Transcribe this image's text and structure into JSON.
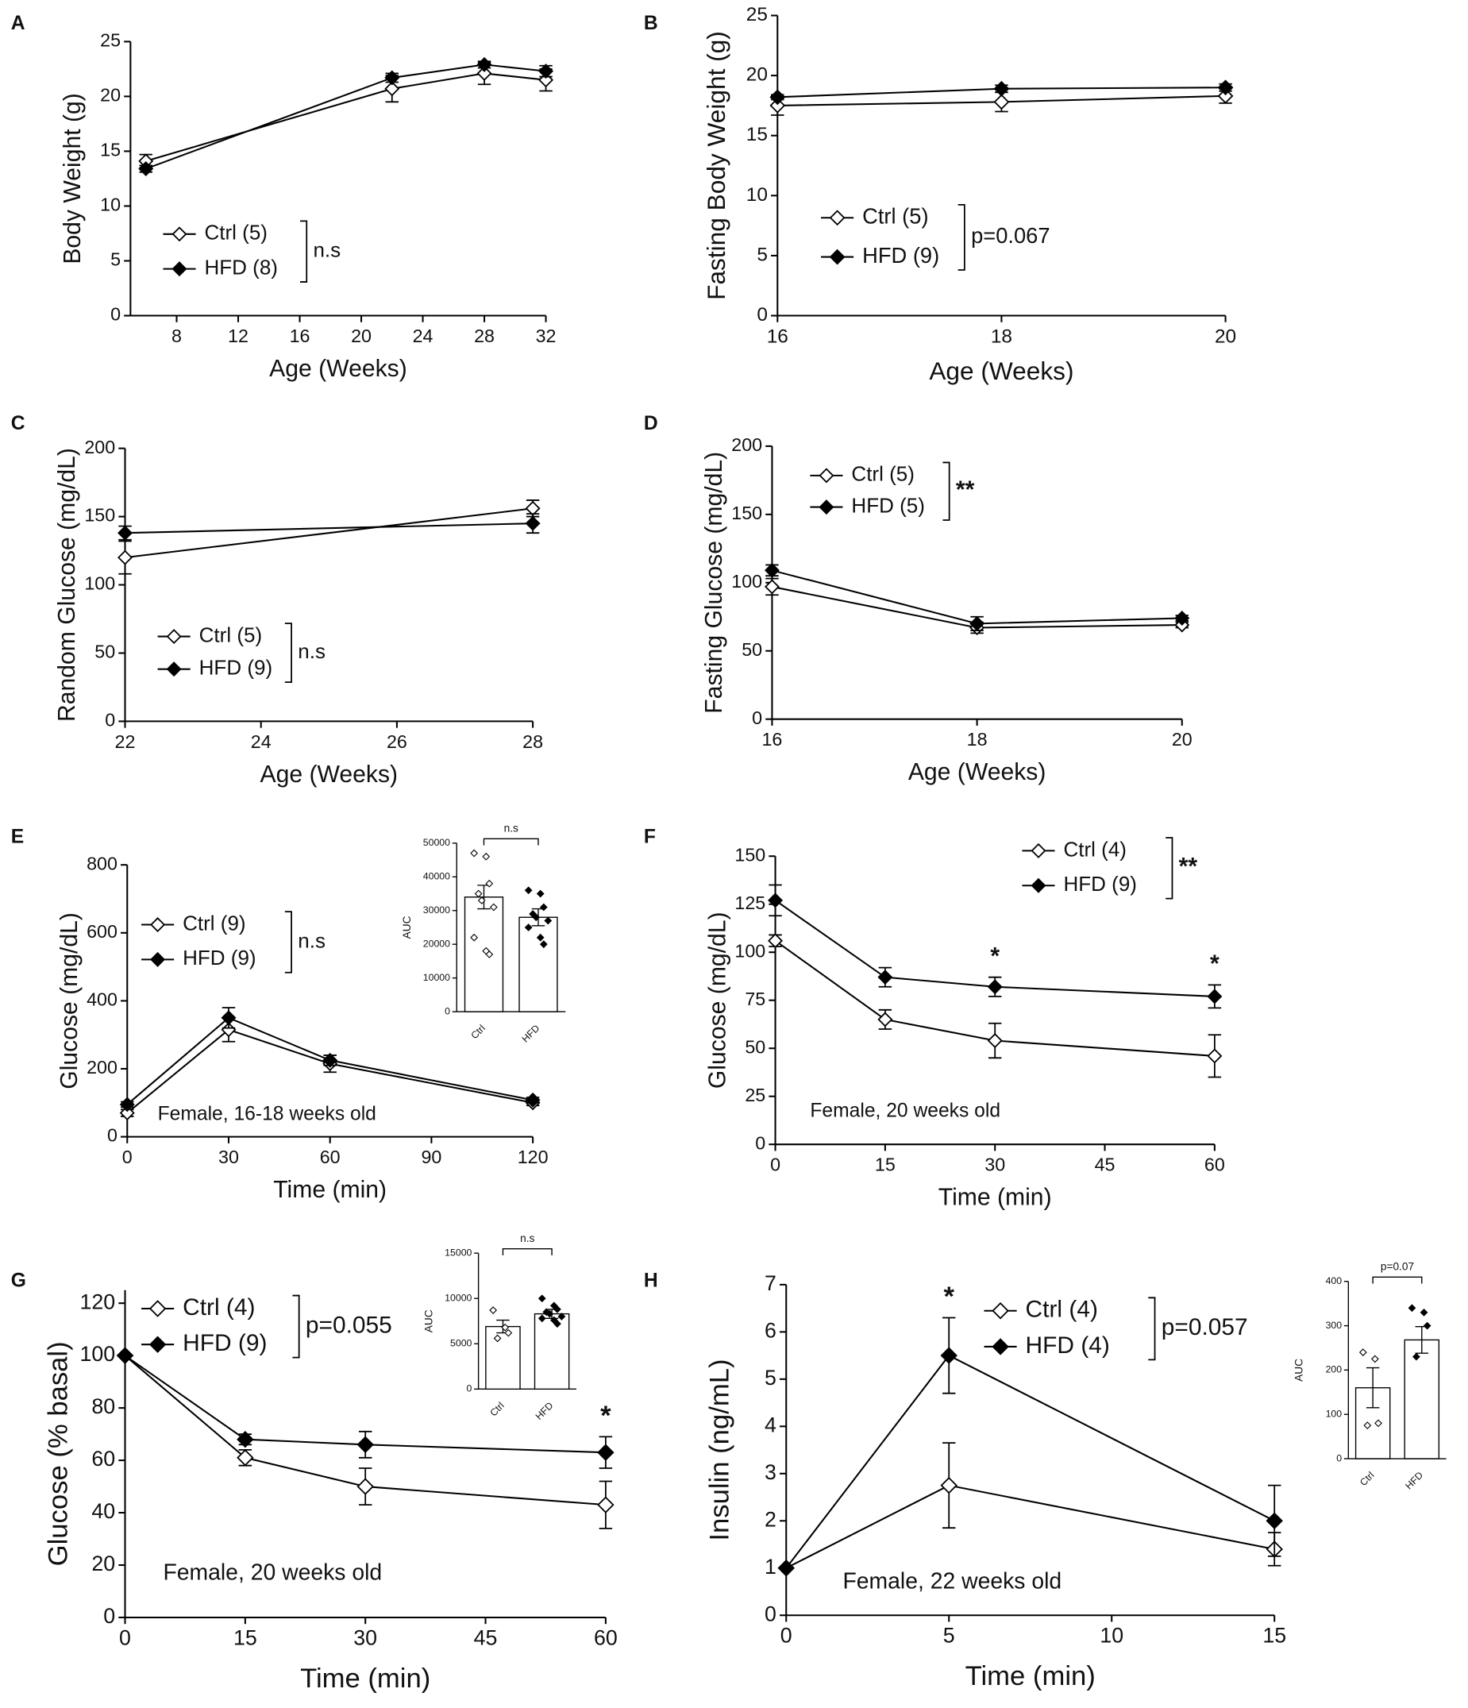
{
  "chart_data": [
    {
      "type": "line",
      "panel": "A",
      "xlabel": "Age (Weeks)",
      "ylabel": "Body Weight (g)",
      "x": [
        6,
        22,
        28,
        32
      ],
      "xlim": [
        5,
        32
      ],
      "xticks": [
        8,
        12,
        16,
        20,
        24,
        28,
        32
      ],
      "ylim": [
        0,
        25
      ],
      "yticks": [
        0,
        5,
        10,
        15,
        20,
        25
      ],
      "series": [
        {
          "name": "Ctrl (5)",
          "marker": "open",
          "color": "#000",
          "values": [
            14.1,
            20.7,
            22.1,
            21.5
          ],
          "errors": [
            0.6,
            1.2,
            1.0,
            1.0
          ]
        },
        {
          "name": "HFD (8)",
          "marker": "filled",
          "color": "#000",
          "values": [
            13.4,
            21.7,
            22.9,
            22.3
          ],
          "errors": [
            0.3,
            0.4,
            0.3,
            0.5
          ]
        }
      ],
      "legend_note": "n.s"
    },
    {
      "type": "line",
      "panel": "B",
      "xlabel": "Age (Weeks)",
      "ylabel": "Fasting Body Weight (g)",
      "x": [
        16,
        18,
        20
      ],
      "xlim": [
        16,
        20
      ],
      "xticks": [
        16,
        18,
        20
      ],
      "ylim": [
        0,
        25
      ],
      "yticks": [
        0,
        5,
        10,
        15,
        20,
        25
      ],
      "series": [
        {
          "name": "Ctrl (5)",
          "marker": "open",
          "color": "#000",
          "values": [
            17.5,
            17.8,
            18.3
          ],
          "errors": [
            0.8,
            0.8,
            0.6
          ]
        },
        {
          "name": "HFD (9)",
          "marker": "filled",
          "color": "#000",
          "values": [
            18.2,
            18.9,
            19.0
          ],
          "errors": [
            0.2,
            0.3,
            0.3
          ]
        }
      ],
      "legend_note": "p=0.067"
    },
    {
      "type": "line",
      "panel": "C",
      "xlabel": "Age (Weeks)",
      "ylabel": "Random Glucose (mg/dL)",
      "x": [
        22,
        28
      ],
      "xlim": [
        22,
        28
      ],
      "xticks": [
        22,
        24,
        26,
        28
      ],
      "ylim": [
        0,
        200
      ],
      "yticks": [
        0,
        50,
        100,
        150,
        200
      ],
      "series": [
        {
          "name": "Ctrl (5)",
          "marker": "open",
          "color": "#000",
          "values": [
            120,
            156
          ],
          "errors": [
            12,
            6
          ]
        },
        {
          "name": "HFD (9)",
          "marker": "filled",
          "color": "#000",
          "values": [
            138,
            145
          ],
          "errors": [
            5,
            7
          ]
        }
      ],
      "legend_note": "n.s"
    },
    {
      "type": "line",
      "panel": "D",
      "xlabel": "Age (Weeks)",
      "ylabel": "Fasting Glucose (mg/dL)",
      "x": [
        16,
        18,
        20
      ],
      "xlim": [
        16,
        20
      ],
      "xticks": [
        16,
        18,
        20
      ],
      "ylim": [
        0,
        200
      ],
      "yticks": [
        0,
        50,
        100,
        150,
        200
      ],
      "series": [
        {
          "name": "Ctrl (5)",
          "marker": "open",
          "color": "#000",
          "values": [
            97,
            67,
            69
          ],
          "errors": [
            6,
            4,
            2
          ]
        },
        {
          "name": "HFD (5)",
          "marker": "filled",
          "color": "#000",
          "values": [
            109,
            70,
            74
          ],
          "errors": [
            4,
            5,
            2
          ]
        }
      ],
      "legend_note": "**"
    },
    {
      "type": "line",
      "panel": "E",
      "xlabel": "Time (min)",
      "ylabel": "Glucose (mg/dL)",
      "x": [
        0,
        30,
        60,
        120
      ],
      "xlim": [
        0,
        120
      ],
      "xticks": [
        0,
        30,
        60,
        90,
        120
      ],
      "ylim": [
        0,
        800
      ],
      "yticks": [
        0,
        200,
        400,
        600,
        800
      ],
      "series": [
        {
          "name": "Ctrl (9)",
          "marker": "open",
          "color": "#000",
          "values": [
            70,
            315,
            215,
            100
          ],
          "errors": [
            10,
            35,
            25,
            8
          ]
        },
        {
          "name": "HFD (9)",
          "marker": "filled",
          "color": "#000",
          "values": [
            95,
            350,
            225,
            108
          ],
          "errors": [
            8,
            30,
            15,
            8
          ]
        }
      ],
      "legend_note": "n.s",
      "annotation": "Female, 16-18 weeks old",
      "inset": {
        "type": "bar",
        "ylabel": "AUC",
        "categories": [
          "Ctrl",
          "HFD"
        ],
        "values": [
          34000,
          28000
        ],
        "errors": [
          3500,
          2500
        ],
        "points": [
          [
            47000,
            46000,
            38000,
            35000,
            33000,
            31000,
            22000,
            18000,
            17000
          ],
          [
            36000,
            35000,
            31000,
            29000,
            28000,
            27000,
            25000,
            22000,
            20000
          ]
        ],
        "ylim": [
          0,
          50000
        ],
        "yticks": [
          0,
          10000,
          20000,
          30000,
          40000,
          50000
        ],
        "note": "n.s"
      }
    },
    {
      "type": "line",
      "panel": "F",
      "xlabel": "Time (min)",
      "ylabel": "Glucose (mg/dL)",
      "x": [
        0,
        15,
        30,
        60
      ],
      "xlim": [
        0,
        60
      ],
      "xticks": [
        0,
        15,
        30,
        45,
        60
      ],
      "ylim": [
        0,
        150
      ],
      "yticks": [
        0,
        25,
        50,
        75,
        100,
        125,
        150
      ],
      "series": [
        {
          "name": "Ctrl (4)",
          "marker": "open",
          "color": "#000",
          "values": [
            106,
            65,
            54,
            46
          ],
          "errors": [
            3,
            5,
            9,
            11
          ]
        },
        {
          "name": "HFD (9)",
          "marker": "filled",
          "color": "#000",
          "values": [
            127,
            87,
            82,
            77
          ],
          "errors": [
            8,
            5,
            5,
            6
          ]
        }
      ],
      "legend_note": "**",
      "annotation": "Female, 20 weeks old",
      "stars": [
        {
          "x": 30,
          "label": "*"
        },
        {
          "x": 60,
          "label": "*"
        }
      ]
    },
    {
      "type": "line",
      "panel": "G",
      "xlabel": "Time (min)",
      "ylabel": "Glucose (% basal)",
      "x": [
        0,
        15,
        30,
        60
      ],
      "xlim": [
        0,
        60
      ],
      "xticks": [
        0,
        15,
        30,
        45,
        60
      ],
      "ylim": [
        0,
        125
      ],
      "yticks": [
        0,
        20,
        40,
        60,
        80,
        100,
        120
      ],
      "series": [
        {
          "name": "Ctrl (4)",
          "marker": "open",
          "color": "#000",
          "values": [
            100,
            61,
            50,
            43
          ],
          "errors": [
            0,
            3,
            7,
            9
          ]
        },
        {
          "name": "HFD (9)",
          "marker": "filled",
          "color": "#000",
          "values": [
            100,
            68,
            66,
            63
          ],
          "errors": [
            0,
            2,
            5,
            6
          ]
        }
      ],
      "legend_note": "p=0.055",
      "annotation": "Female, 20 weeks old",
      "stars": [
        {
          "x": 60,
          "label": "*"
        }
      ],
      "inset": {
        "type": "bar",
        "ylabel": "AUC",
        "categories": [
          "Ctrl",
          "HFD"
        ],
        "values": [
          6900,
          8300
        ],
        "errors": [
          700,
          500
        ],
        "points": [
          [
            8700,
            6800,
            6200,
            5600
          ],
          [
            10000,
            9200,
            8800,
            8500,
            8300,
            8000,
            7800,
            7600,
            7200
          ]
        ],
        "ylim": [
          0,
          15000
        ],
        "yticks": [
          0,
          5000,
          10000,
          15000
        ],
        "note": "n.s"
      }
    },
    {
      "type": "line",
      "panel": "H",
      "xlabel": "Time (min)",
      "ylabel": "Insulin (ng/mL)",
      "x": [
        0,
        5,
        15
      ],
      "xlim": [
        0,
        15
      ],
      "xticks": [
        0,
        5,
        10,
        15
      ],
      "ylim": [
        0,
        7
      ],
      "yticks": [
        0,
        1,
        2,
        3,
        4,
        5,
        6,
        7
      ],
      "series": [
        {
          "name": "Ctrl (4)",
          "marker": "open",
          "color": "#000",
          "values": [
            1,
            2.75,
            1.4
          ],
          "errors": [
            0,
            0.9,
            0.35
          ],
          "stars": null
        },
        {
          "name": "HFD (4)",
          "marker": "filled",
          "color": "#000",
          "values": [
            1,
            5.5,
            2
          ],
          "errors": [
            0,
            0.8,
            0.75
          ]
        }
      ],
      "legend_note": "p=0.057",
      "annotation": "Female, 22 weeks old",
      "stars": [
        {
          "x": 5,
          "label": "*"
        }
      ],
      "inset": {
        "type": "bar",
        "ylabel": "AUC",
        "categories": [
          "Ctrl",
          "HFD"
        ],
        "values": [
          160,
          268
        ],
        "errors": [
          45,
          30
        ],
        "points": [
          [
            240,
            225,
            80,
            75
          ],
          [
            340,
            330,
            300,
            230
          ]
        ],
        "ylim": [
          0,
          400
        ],
        "yticks": [
          0,
          100,
          200,
          300,
          400
        ],
        "note": "p=0.07"
      }
    }
  ]
}
